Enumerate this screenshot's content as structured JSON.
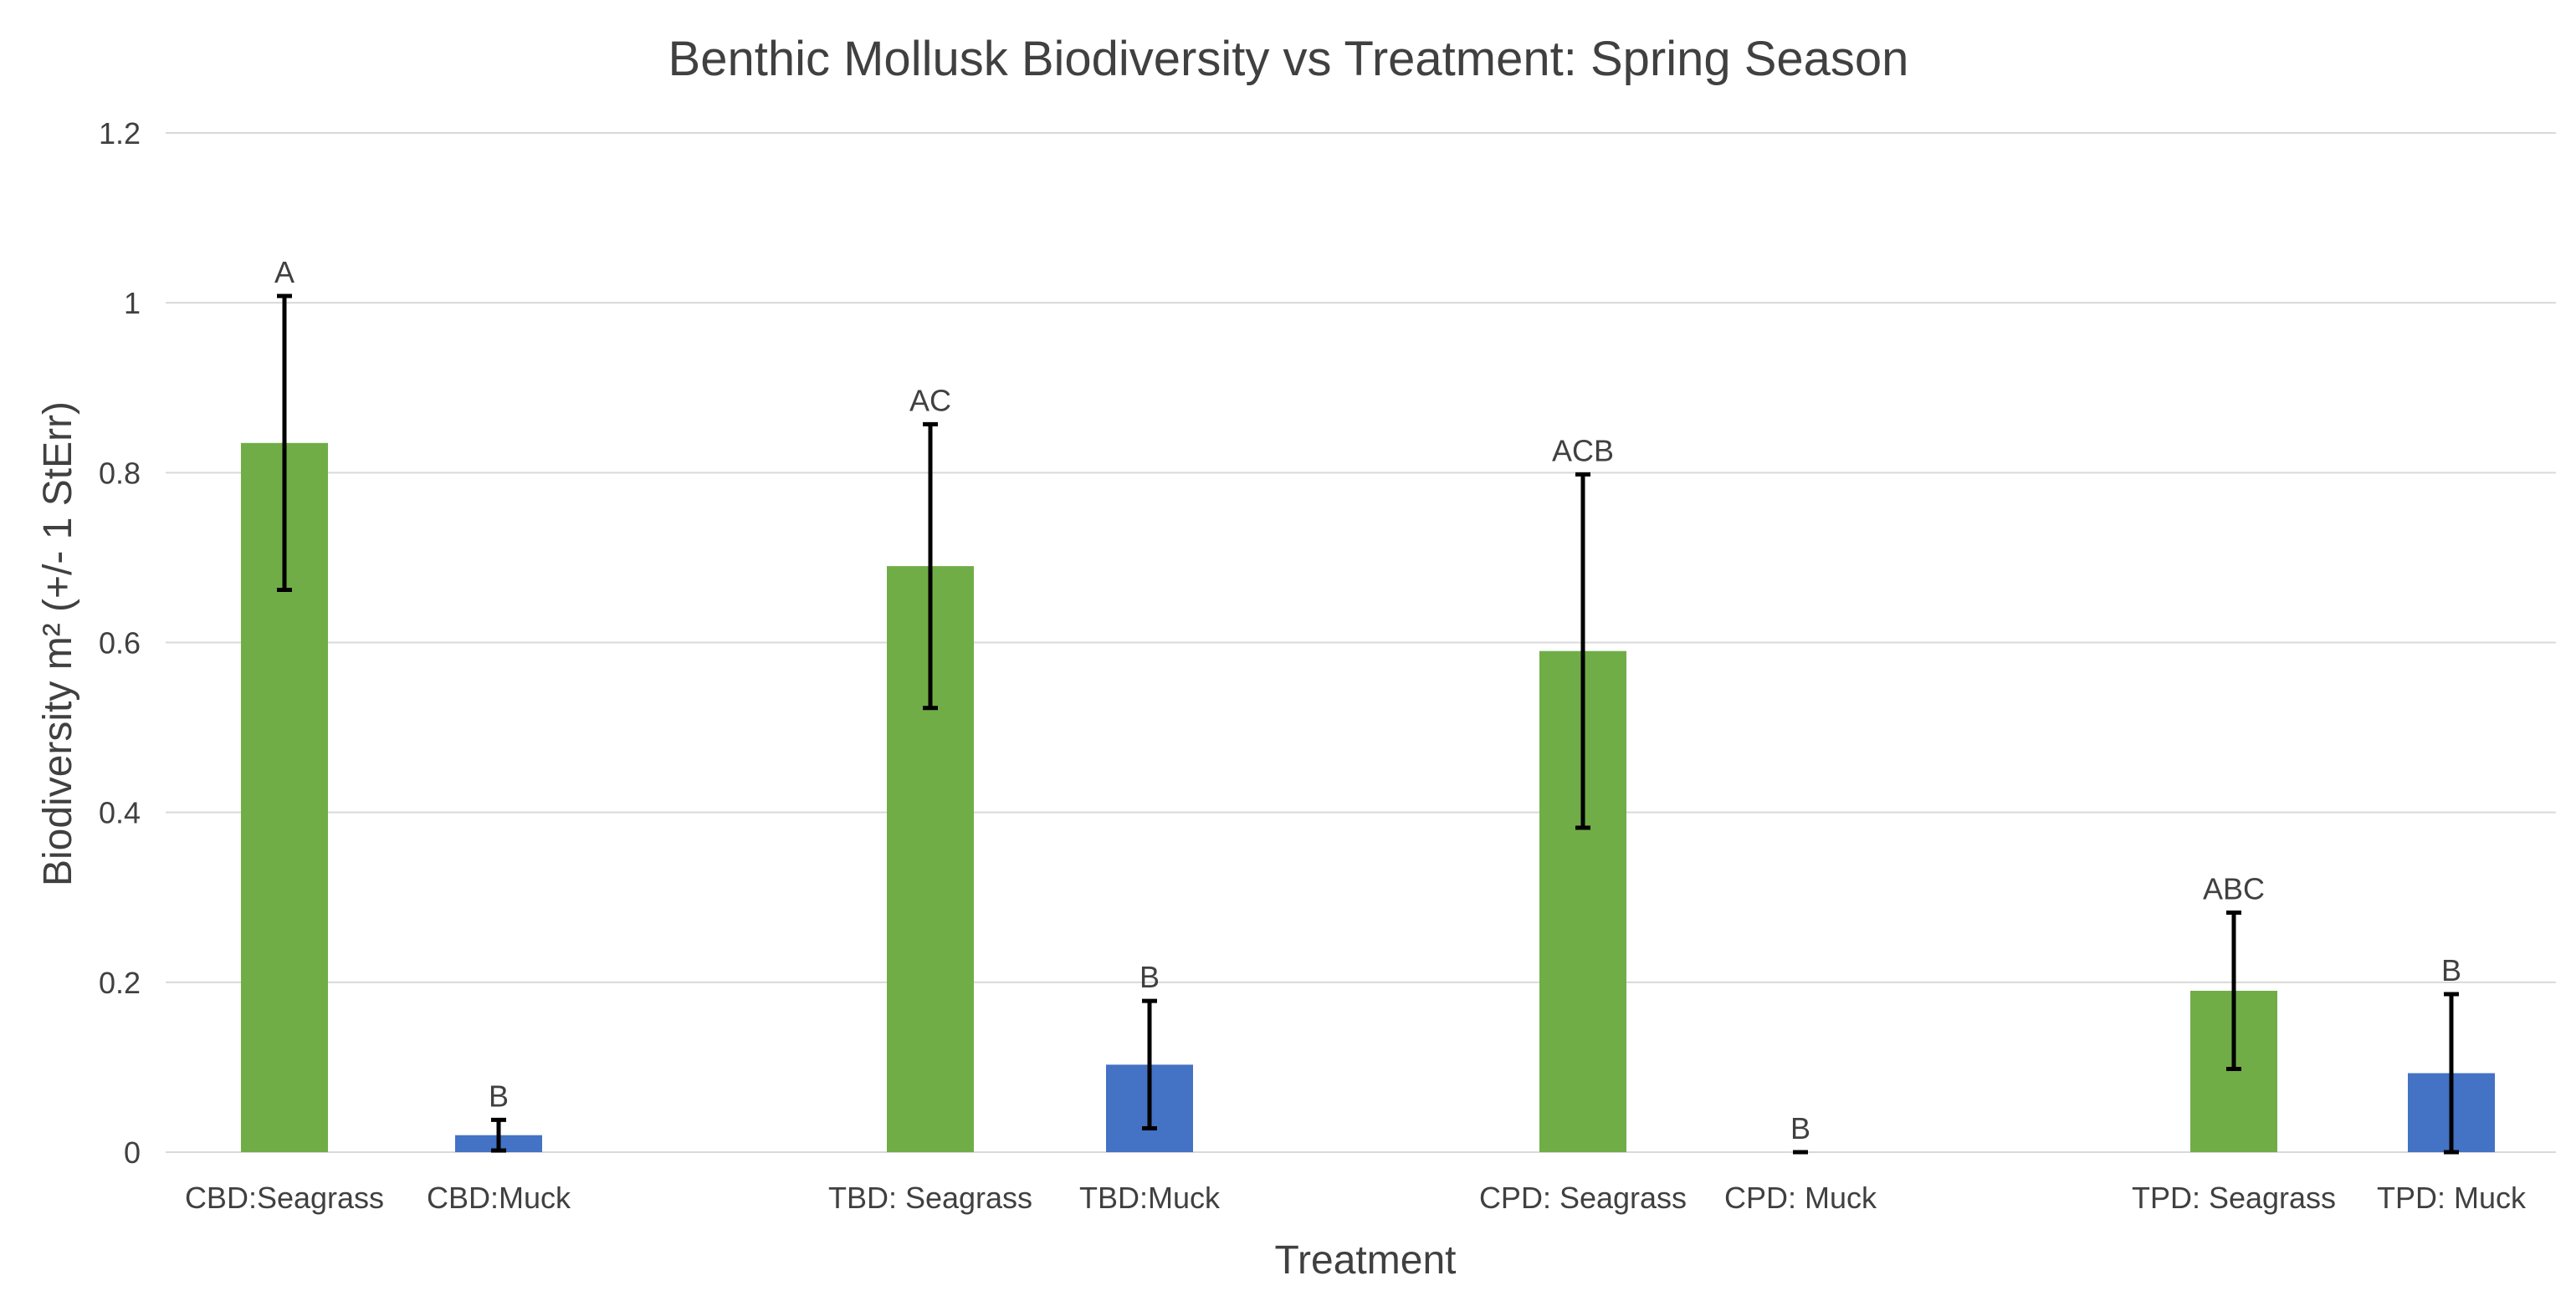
{
  "chart_data": {
    "type": "bar",
    "title": "Benthic Mollusk Biodiversity vs Treatment: Spring Season",
    "xlabel": "Treatment",
    "ylabel": "Biodiversity m² (+/- 1 StErr)",
    "ylim": [
      0,
      1.2
    ],
    "y_ticks": [
      0,
      0.2,
      0.4,
      0.6,
      0.8,
      1,
      1.2
    ],
    "y_tick_labels": [
      "0",
      "0.2",
      "0.4",
      "0.6",
      "0.8",
      "1",
      "1.2"
    ],
    "grid": true,
    "categories": [
      "CBD:Seagrass",
      "CBD:Muck",
      "TBD: Seagrass",
      "TBD:Muck",
      "CPD: Seagrass",
      "CPD: Muck",
      "TPD: Seagrass",
      "TPD: Muck"
    ],
    "values": [
      0.835,
      0.02,
      0.69,
      0.103,
      0.59,
      0.0,
      0.19,
      0.093
    ],
    "errors": [
      0.173,
      0.018,
      0.167,
      0.075,
      0.208,
      0.0,
      0.092,
      0.093
    ],
    "significance_labels": [
      "A",
      "B",
      "AC",
      "B",
      "ACB",
      "B",
      "ABC",
      "B"
    ],
    "colors": [
      "#70ad47",
      "#4472c4",
      "#70ad47",
      "#4472c4",
      "#70ad47",
      "#4472c4",
      "#70ad47",
      "#4472c4"
    ]
  }
}
